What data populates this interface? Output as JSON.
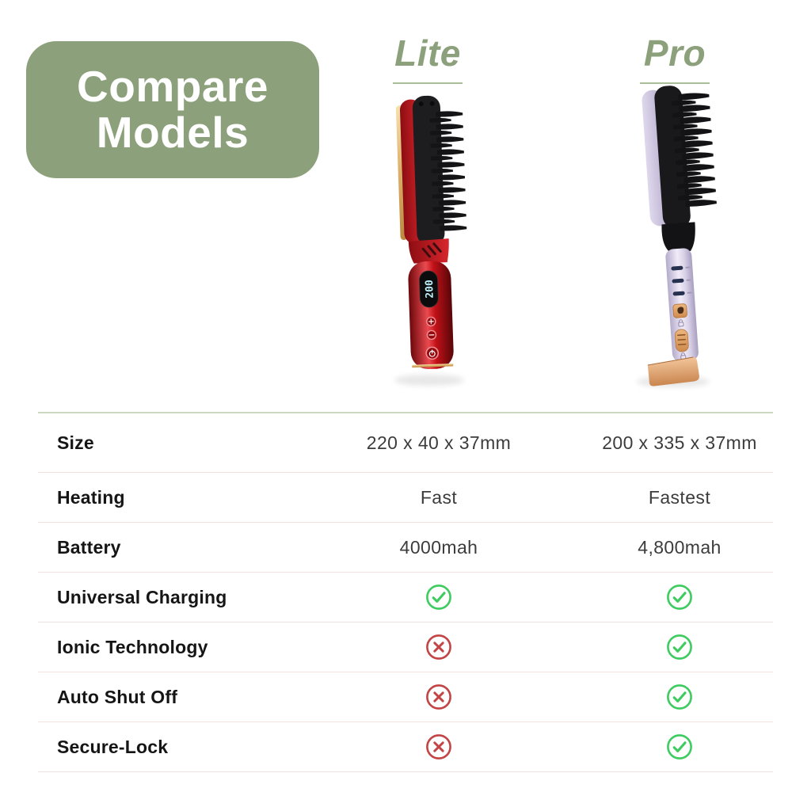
{
  "header": {
    "line1": "Compare",
    "line2": "Models"
  },
  "models": [
    {
      "id": "lite",
      "name": "Lite"
    },
    {
      "id": "pro",
      "name": "Pro"
    }
  ],
  "products": {
    "lite": {
      "description": "red cordless straightening brush",
      "display_value": "200"
    },
    "pro": {
      "description": "lavender cordless straightening brush"
    }
  },
  "table": {
    "rows": [
      {
        "label": "Size",
        "lite": {
          "text": "220 x 40 x 37mm"
        },
        "pro": {
          "text": "200 x 335 x 37mm"
        }
      },
      {
        "label": "Heating",
        "lite": {
          "text": "Fast"
        },
        "pro": {
          "text": "Fastest"
        }
      },
      {
        "label": "Battery",
        "lite": {
          "text": "4000mah"
        },
        "pro": {
          "text": "4,800mah"
        }
      },
      {
        "label": "Universal Charging",
        "lite": {
          "icon": "check"
        },
        "pro": {
          "icon": "check"
        }
      },
      {
        "label": "Ionic Technology",
        "lite": {
          "icon": "cross"
        },
        "pro": {
          "icon": "check"
        }
      },
      {
        "label": "Auto Shut Off",
        "lite": {
          "icon": "cross"
        },
        "pro": {
          "icon": "check"
        }
      },
      {
        "label": "Secure-Lock",
        "lite": {
          "icon": "cross"
        },
        "pro": {
          "icon": "check"
        }
      }
    ]
  },
  "colors": {
    "brand_green": "#8CA17B",
    "underline_green": "#A9BD97",
    "check_green": "#3ECB5F",
    "cross_red": "#C24444",
    "divider_pink": "#F2E3DE",
    "divider_top_green": "#CCD7C1",
    "lite_body_red": "#C1151B",
    "pro_body_lavender": "#C9C2DC",
    "accent_gold": "#DCAE67"
  }
}
